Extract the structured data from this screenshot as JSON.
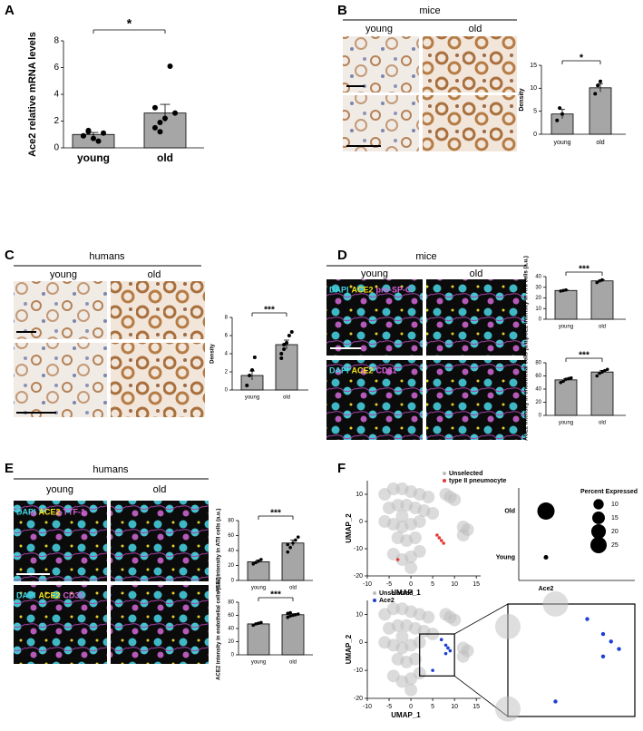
{
  "panels": {
    "letters": [
      "A",
      "B",
      "C",
      "D",
      "E",
      "F"
    ],
    "B": {
      "species": "mice",
      "groups": [
        "young",
        "old"
      ]
    },
    "C": {
      "species": "humans",
      "groups": [
        "young",
        "old"
      ]
    },
    "D": {
      "species": "mice",
      "groups": [
        "young",
        "old"
      ],
      "stains": [
        [
          "DAPI",
          "ACE2",
          "pro-SP-C"
        ],
        [
          "DAPI",
          "ACE2",
          "CD31"
        ]
      ]
    },
    "E": {
      "species": "humans",
      "groups": [
        "young",
        "old"
      ],
      "stains": [
        [
          "DAPI",
          "ACE2",
          "TTF-1"
        ],
        [
          "DAPI",
          "ACE2",
          "CD31"
        ]
      ]
    }
  },
  "chart_data": [
    {
      "type": "bar",
      "ylabel": "Ace2 relative mRNA levels",
      "categories": [
        "young",
        "old"
      ],
      "values": [
        1.0,
        2.6
      ],
      "errors": [
        0.15,
        0.65
      ],
      "points": [
        [
          0.9,
          1.2,
          0.7,
          0.5,
          1.1,
          0.9,
          1.3
        ],
        [
          1.5,
          1.2,
          2.2,
          6.1,
          2.6,
          3.0,
          1.9
        ]
      ],
      "ylim": [
        0,
        8
      ],
      "yticks": [
        0,
        2,
        4,
        6,
        8
      ],
      "significance": "*",
      "color": "#a6a6a6"
    },
    {
      "type": "bar",
      "ylabel": "Density",
      "categories": [
        "young",
        "old"
      ],
      "values": [
        4.4,
        10.1
      ],
      "errors": [
        1.0,
        0.9
      ],
      "points": [
        [
          3.0,
          5.7,
          4.4
        ],
        [
          8.8,
          10.6,
          11.5
        ]
      ],
      "ylim": [
        0,
        15
      ],
      "yticks": [
        0,
        5,
        10,
        15
      ],
      "significance": "*",
      "color": "#a6a6a6"
    },
    {
      "type": "bar",
      "ylabel": "Density",
      "categories": [
        "young",
        "old"
      ],
      "values": [
        1.6,
        5.0
      ],
      "errors": [
        0.5,
        0.5
      ],
      "points": [
        [
          0.5,
          1.6,
          2.2,
          3.6
        ],
        [
          3.5,
          4.5,
          5.2,
          6.0,
          6.4,
          4.0,
          5.0
        ]
      ],
      "ylim": [
        0,
        8
      ],
      "yticks": [
        0,
        2,
        4,
        6,
        8
      ],
      "significance": "***",
      "color": "#a6a6a6"
    },
    {
      "type": "bar",
      "ylabel": "ACE2 intensity in ATII cells (a.u.)",
      "categories": [
        "young",
        "old"
      ],
      "values": [
        27,
        36
      ],
      "errors": [
        0.5,
        1.0
      ],
      "points": [
        [
          26.5,
          27,
          27.5
        ],
        [
          34.5,
          36,
          37
        ]
      ],
      "ylim": [
        0,
        40
      ],
      "yticks": [
        0,
        10,
        20,
        30,
        40
      ],
      "significance": "***",
      "color": "#a6a6a6"
    },
    {
      "type": "bar",
      "ylabel": "ACE2 intensity in endothelial cells (a.u.)",
      "categories": [
        "young",
        "old"
      ],
      "values": [
        54,
        66
      ],
      "errors": [
        2,
        2.5
      ],
      "points": [
        [
          50,
          52,
          55,
          56,
          57
        ],
        [
          60,
          64,
          66,
          68,
          70
        ]
      ],
      "ylim": [
        0,
        80
      ],
      "yticks": [
        0,
        20,
        40,
        60,
        80
      ],
      "significance": "***",
      "color": "#a6a6a6"
    },
    {
      "type": "bar",
      "ylabel": "ACE2 intensity in ATII cells (a.u.)",
      "categories": [
        "young",
        "old"
      ],
      "values": [
        25,
        50
      ],
      "errors": [
        2,
        4
      ],
      "points": [
        [
          22,
          24,
          26,
          28
        ],
        [
          38,
          44,
          50,
          54,
          58,
          48
        ]
      ],
      "ylim": [
        0,
        80
      ],
      "yticks": [
        0,
        20,
        40,
        60,
        80
      ],
      "significance": "***",
      "color": "#a6a6a6"
    },
    {
      "type": "bar",
      "ylabel": "ACE2 intensity in endothelial cells (a.u.)",
      "categories": [
        "young",
        "old"
      ],
      "values": [
        47,
        61
      ],
      "errors": [
        1.5,
        1.5
      ],
      "points": [
        [
          45,
          47,
          48,
          49
        ],
        [
          57,
          59,
          60,
          61,
          62,
          63,
          64
        ]
      ],
      "ylim": [
        0,
        80
      ],
      "yticks": [
        0,
        20,
        40,
        60,
        80
      ],
      "significance": "***",
      "color": "#a6a6a6"
    },
    {
      "type": "scatter",
      "xlabel": "UMAP_1",
      "ylabel": "UMAP_2",
      "xlim": [
        -10,
        16
      ],
      "ylim": [
        -20,
        15
      ],
      "xticks": [
        -10,
        -5,
        0,
        5,
        10,
        15
      ],
      "yticks": [
        -20,
        -10,
        0,
        10
      ],
      "legend": "upper right",
      "series": [
        {
          "name": "Unselected",
          "color": "#bdbdbd",
          "x": [
            -6,
            -4,
            -2,
            0,
            2,
            4,
            -5,
            -3,
            -1,
            1,
            3,
            5,
            -6,
            -4,
            -2,
            0,
            2,
            -3,
            -1,
            1,
            -4,
            -2,
            0,
            2,
            8,
            9,
            10,
            12,
            13,
            12,
            0,
            -2
          ],
          "y": [
            10,
            12,
            12,
            11,
            10,
            9,
            5,
            6,
            6,
            5,
            4,
            3,
            0,
            -1,
            -2,
            -1,
            0,
            -6,
            -7,
            -6,
            -12,
            -14,
            -13,
            -11,
            10,
            9,
            8,
            -2,
            -3,
            -5,
            -17,
            2
          ]
        },
        {
          "name": "type II pneumocyte",
          "color": "#e53935",
          "x": [
            6,
            6.5,
            7,
            7.5,
            -3
          ],
          "y": [
            -5,
            -6,
            -7,
            -8,
            -14
          ]
        }
      ]
    },
    {
      "type": "dot",
      "title": "Percent Expressed",
      "categories": [
        "Old",
        "Young"
      ],
      "x_category": "Ace2",
      "values": [
        28,
        2
      ],
      "size_legend": [
        10,
        15,
        20,
        25
      ],
      "color": "#000000"
    },
    {
      "type": "scatter",
      "xlabel": "UMAP_1",
      "ylabel": "UMAP_2",
      "xlim": [
        -10,
        16
      ],
      "ylim": [
        -20,
        15
      ],
      "xticks": [
        -10,
        -5,
        0,
        5,
        10,
        15
      ],
      "yticks": [
        -20,
        -10,
        0,
        10
      ],
      "legend": "upper left",
      "series": [
        {
          "name": "Unselected",
          "color": "#bdbdbd",
          "x": [
            -6,
            -4,
            -2,
            0,
            2,
            4,
            -5,
            -3,
            -1,
            1,
            3,
            5,
            -6,
            -4,
            -2,
            0,
            2,
            -3,
            -1,
            1,
            -4,
            -2,
            0,
            2,
            8,
            9,
            10,
            12,
            13,
            12,
            0,
            -2
          ],
          "y": [
            10,
            12,
            12,
            11,
            10,
            9,
            5,
            6,
            6,
            5,
            4,
            3,
            0,
            -1,
            -2,
            -1,
            0,
            -6,
            -7,
            -6,
            -12,
            -14,
            -13,
            -11,
            10,
            9,
            8,
            -2,
            -3,
            -5,
            -17,
            2
          ]
        },
        {
          "name": "Ace2",
          "color": "#1e3fd6",
          "x": [
            7,
            8,
            8.5,
            9,
            8,
            5
          ],
          "y": [
            1,
            -1,
            -2,
            -3,
            -4,
            -10
          ]
        }
      ]
    }
  ]
}
